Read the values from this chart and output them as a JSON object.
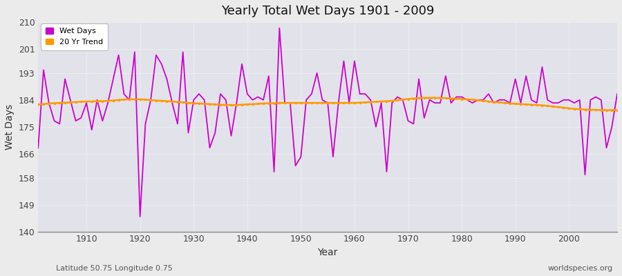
{
  "title": "Yearly Total Wet Days 1901 - 2009",
  "xlabel": "Year",
  "ylabel": "Wet Days",
  "subtitle": "Latitude 50.75 Longitude 0.75",
  "watermark": "worldspecies.org",
  "ylim": [
    140,
    210
  ],
  "yticks": [
    140,
    149,
    158,
    166,
    175,
    184,
    193,
    201,
    210
  ],
  "bg_color": "#f0f0f0",
  "plot_bg_color": "#e8e8ee",
  "wet_days_color": "#cc00cc",
  "trend_color": "#ff9900",
  "years": [
    1901,
    1902,
    1903,
    1904,
    1905,
    1906,
    1907,
    1908,
    1909,
    1910,
    1911,
    1912,
    1913,
    1914,
    1915,
    1916,
    1917,
    1918,
    1919,
    1920,
    1921,
    1922,
    1923,
    1924,
    1925,
    1926,
    1927,
    1928,
    1929,
    1930,
    1931,
    1932,
    1933,
    1934,
    1935,
    1936,
    1937,
    1938,
    1939,
    1940,
    1941,
    1942,
    1943,
    1944,
    1945,
    1946,
    1947,
    1948,
    1949,
    1950,
    1951,
    1952,
    1953,
    1954,
    1955,
    1956,
    1957,
    1958,
    1959,
    1960,
    1961,
    1962,
    1963,
    1964,
    1965,
    1966,
    1967,
    1968,
    1969,
    1970,
    1971,
    1972,
    1973,
    1974,
    1975,
    1976,
    1977,
    1978,
    1979,
    1980,
    1981,
    1982,
    1983,
    1984,
    1985,
    1986,
    1987,
    1988,
    1989,
    1990,
    1991,
    1992,
    1993,
    1994,
    1995,
    1996,
    1997,
    1998,
    1999,
    2000,
    2001,
    2002,
    2003,
    2004,
    2005,
    2006,
    2007,
    2008,
    2009
  ],
  "wet_days": [
    168,
    194,
    183,
    177,
    176,
    191,
    184,
    177,
    178,
    183,
    174,
    184,
    177,
    183,
    191,
    199,
    186,
    184,
    200,
    145,
    176,
    184,
    199,
    196,
    191,
    183,
    176,
    200,
    173,
    184,
    186,
    184,
    168,
    173,
    186,
    184,
    172,
    183,
    196,
    186,
    184,
    185,
    184,
    192,
    160,
    208,
    183,
    183,
    162,
    165,
    184,
    186,
    193,
    184,
    183,
    165,
    183,
    197,
    183,
    197,
    186,
    186,
    184,
    175,
    183,
    160,
    183,
    185,
    184,
    177,
    176,
    191,
    178,
    184,
    183,
    183,
    192,
    183,
    185,
    185,
    184,
    183,
    184,
    184,
    186,
    183,
    184,
    184,
    183,
    191,
    183,
    192,
    184,
    183,
    195,
    184,
    183,
    183,
    184,
    184,
    183,
    184,
    159,
    184,
    185,
    184,
    168,
    175,
    186
  ],
  "trend": [
    182.5,
    182.6,
    182.8,
    182.9,
    183.0,
    183.1,
    183.2,
    183.3,
    183.4,
    183.5,
    183.5,
    183.6,
    183.6,
    183.7,
    183.8,
    184.0,
    184.1,
    184.2,
    184.2,
    184.2,
    184.1,
    183.9,
    183.8,
    183.7,
    183.6,
    183.5,
    183.3,
    183.2,
    183.0,
    182.9,
    182.8,
    182.7,
    182.6,
    182.5,
    182.4,
    182.3,
    182.3,
    182.3,
    182.4,
    182.5,
    182.6,
    182.7,
    182.8,
    182.9,
    182.9,
    183.0,
    183.0,
    183.0,
    183.0,
    183.0,
    183.0,
    183.0,
    183.0,
    183.0,
    183.0,
    183.0,
    183.0,
    183.0,
    183.0,
    183.0,
    183.1,
    183.2,
    183.3,
    183.4,
    183.5,
    183.6,
    183.7,
    183.9,
    184.1,
    184.3,
    184.5,
    184.6,
    184.7,
    184.7,
    184.7,
    184.7,
    184.6,
    184.5,
    184.4,
    184.3,
    184.2,
    184.1,
    183.9,
    183.7,
    183.5,
    183.3,
    183.2,
    183.0,
    182.8,
    182.7,
    182.6,
    182.5,
    182.4,
    182.3,
    182.2,
    182.0,
    181.8,
    181.6,
    181.4,
    181.2,
    181.0,
    180.9,
    180.8,
    180.7,
    180.7,
    180.6,
    180.6,
    180.6,
    180.6
  ]
}
